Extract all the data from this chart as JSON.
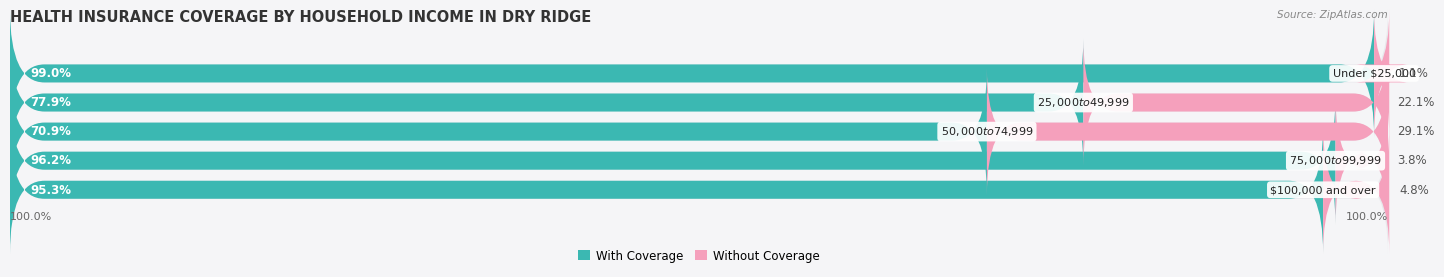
{
  "title": "HEALTH INSURANCE COVERAGE BY HOUSEHOLD INCOME IN DRY RIDGE",
  "source": "Source: ZipAtlas.com",
  "categories": [
    "Under $25,000",
    "$25,000 to $49,999",
    "$50,000 to $74,999",
    "$75,000 to $99,999",
    "$100,000 and over"
  ],
  "with_coverage": [
    99.0,
    77.9,
    70.9,
    96.2,
    95.3
  ],
  "without_coverage": [
    1.1,
    22.1,
    29.1,
    3.8,
    4.8
  ],
  "with_coverage_color": "#3bb8b2",
  "without_coverage_color": "#f5a0bc",
  "bar_bg_color": "#e8e8ec",
  "background_color": "#f5f5f7",
  "title_fontsize": 10.5,
  "label_fontsize": 8.5,
  "category_fontsize": 8.0,
  "legend_fontsize": 8.5,
  "bar_height": 0.62,
  "total_width": 100,
  "left_label_color": "#ffffff",
  "right_label_color": "#555555",
  "category_color": "#222222",
  "bottom_label": "100.0%"
}
